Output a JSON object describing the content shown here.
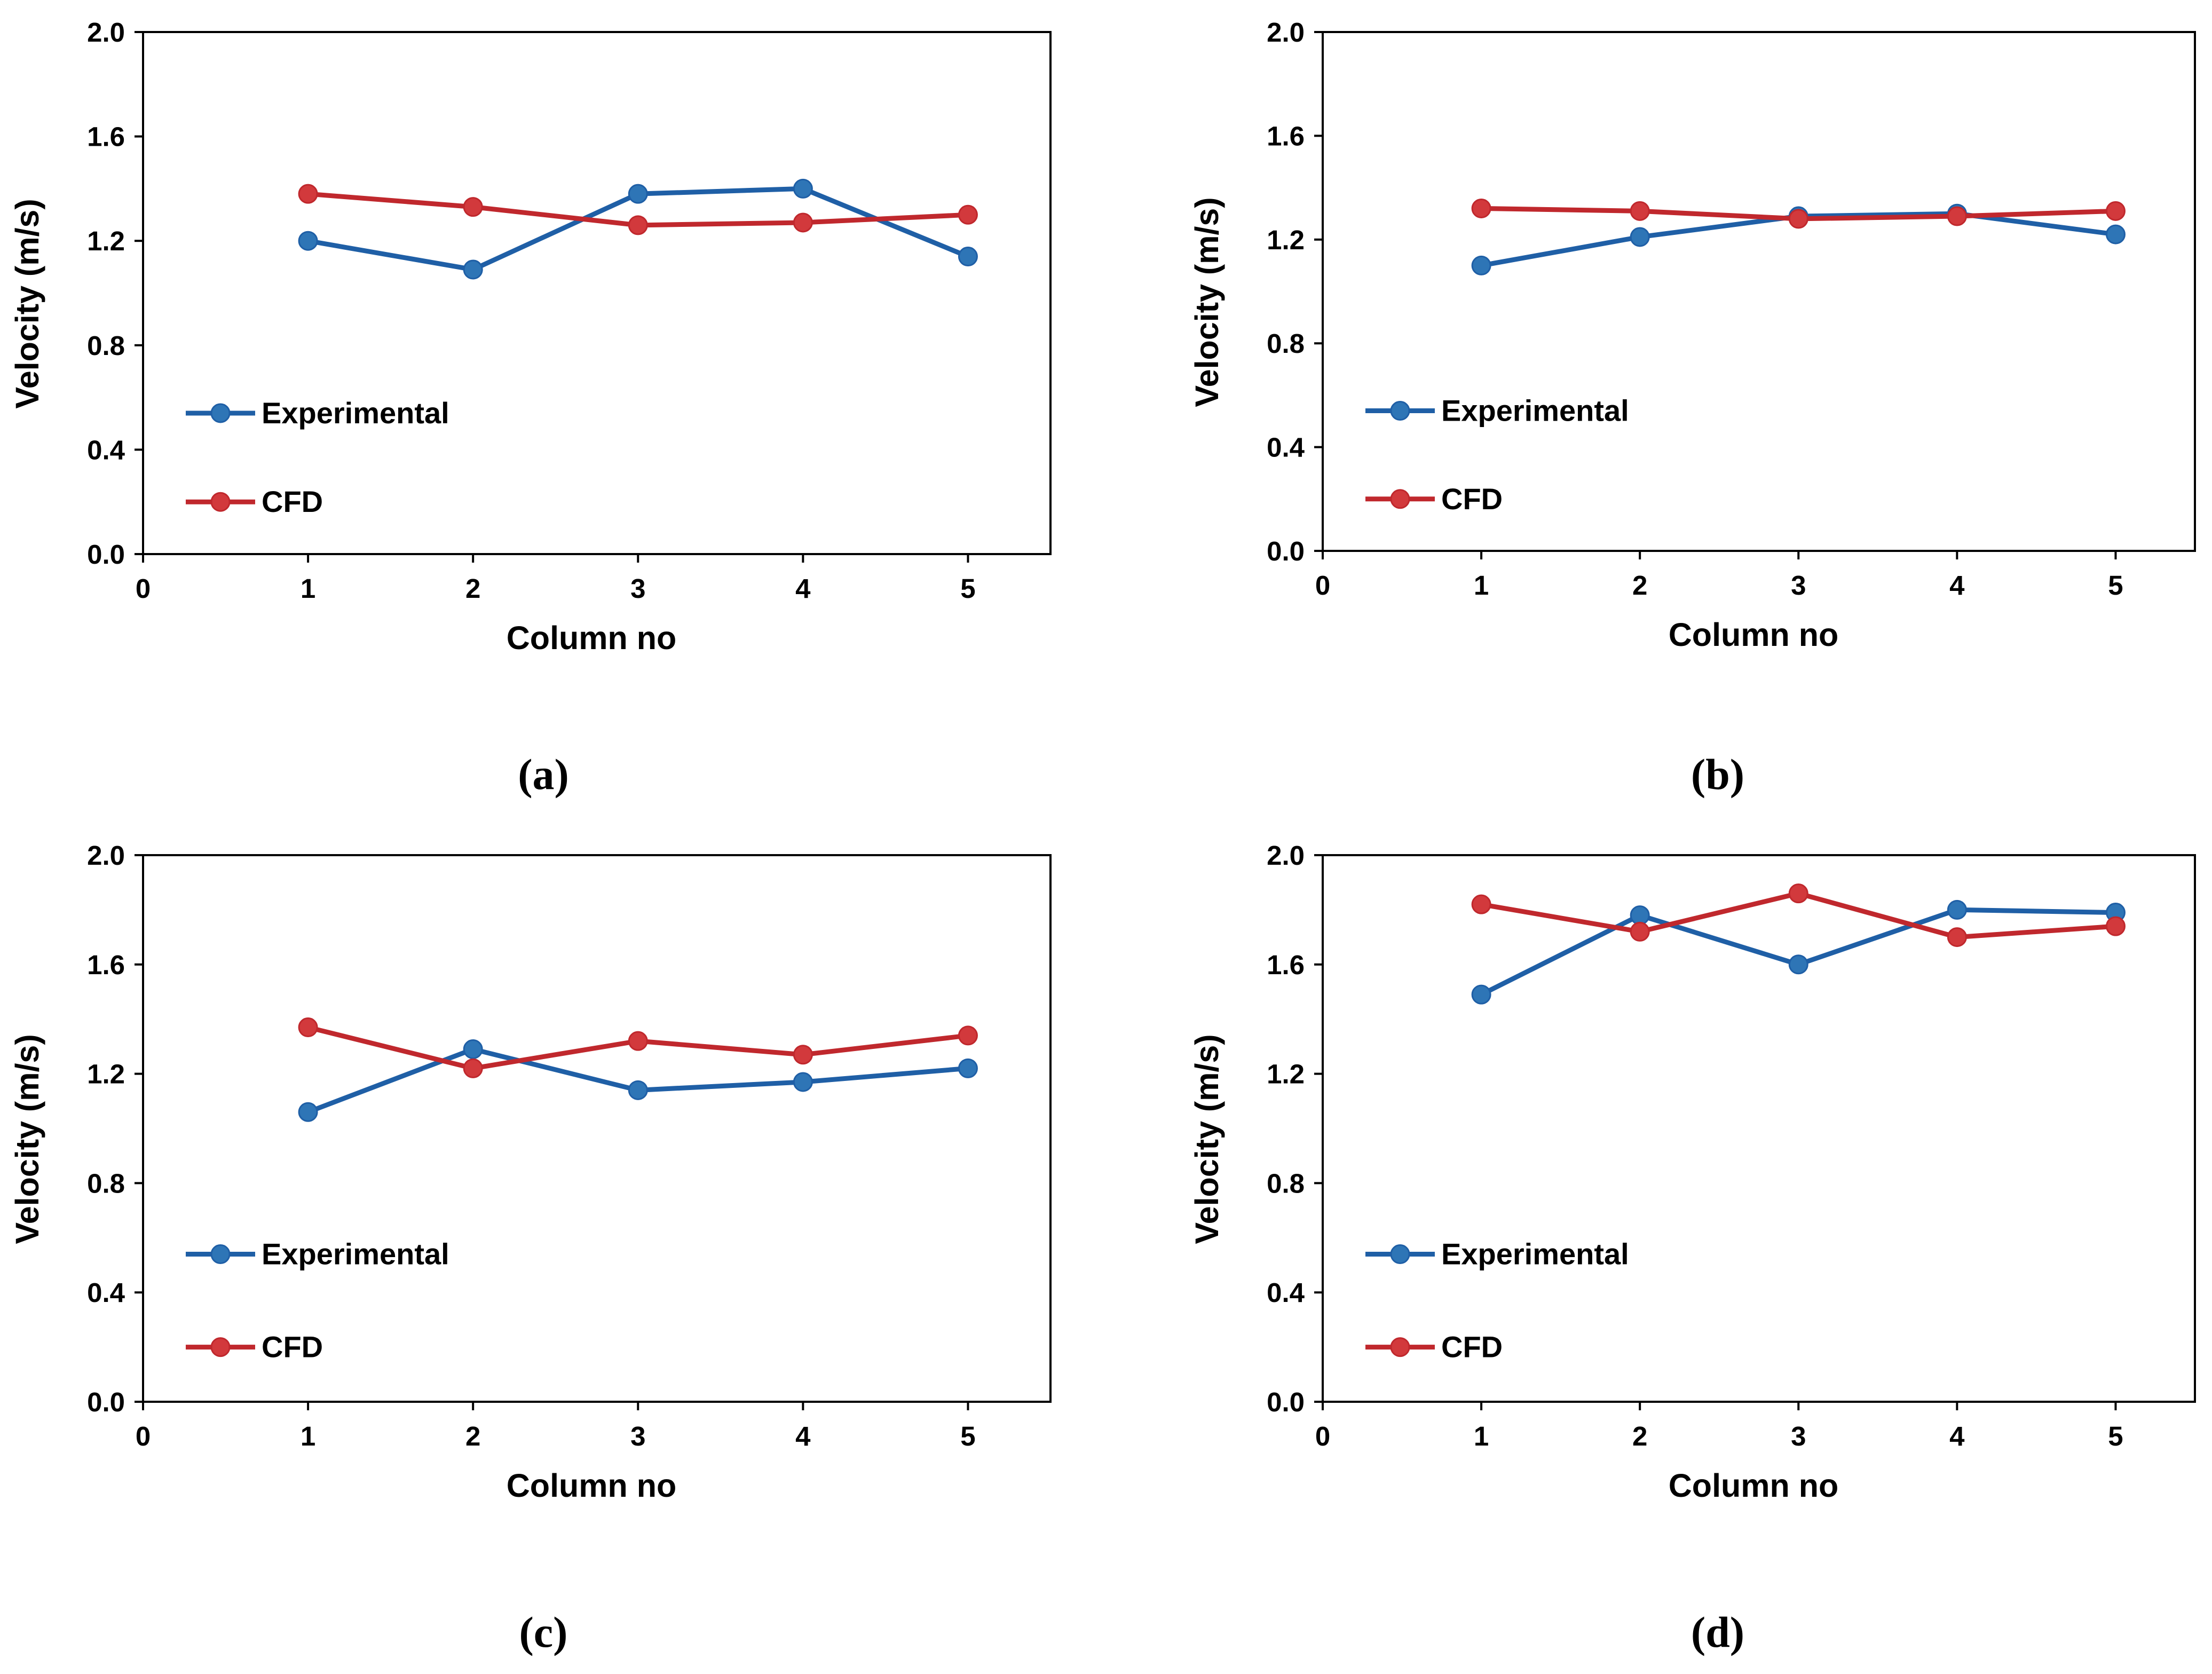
{
  "figure": {
    "series_colors": {
      "Experimental": "#1f5fa6",
      "CFD": "#c0282d"
    },
    "marker_colors": {
      "Experimental": "#2e75b6",
      "CFD": "#d2393c"
    }
  },
  "chart_data": [
    {
      "type": "line",
      "panel_label": "(a)",
      "xlabel": "Column no",
      "ylabel": "Velocity (m/s)",
      "xlim": [
        0,
        5.5
      ],
      "ylim": [
        0.0,
        2.0
      ],
      "x_ticks": [
        "0",
        "1",
        "2",
        "3",
        "4",
        "5"
      ],
      "y_ticks": [
        "0.0",
        "0.4",
        "0.8",
        "1.2",
        "1.6",
        "2.0"
      ],
      "legend": [
        "Experimental",
        "CFD"
      ],
      "x": [
        1,
        2,
        3,
        4,
        5
      ],
      "series": [
        {
          "name": "Experimental",
          "values": [
            1.2,
            1.09,
            1.38,
            1.4,
            1.14
          ]
        },
        {
          "name": "CFD",
          "values": [
            1.38,
            1.33,
            1.26,
            1.27,
            1.3
          ]
        }
      ]
    },
    {
      "type": "line",
      "panel_label": "(b)",
      "xlabel": "Column no",
      "ylabel": "Velocity (m/s)",
      "xlim": [
        0,
        5.5
      ],
      "ylim": [
        0.0,
        2.0
      ],
      "x_ticks": [
        "0",
        "1",
        "2",
        "3",
        "4",
        "5"
      ],
      "y_ticks": [
        "0.0",
        "0.4",
        "0.8",
        "1.2",
        "1.6",
        "2.0"
      ],
      "legend": [
        "Experimental",
        "CFD"
      ],
      "x": [
        1,
        2,
        3,
        4,
        5
      ],
      "series": [
        {
          "name": "Experimental",
          "values": [
            1.1,
            1.21,
            1.29,
            1.3,
            1.22
          ]
        },
        {
          "name": "CFD",
          "values": [
            1.32,
            1.31,
            1.28,
            1.29,
            1.31
          ]
        }
      ]
    },
    {
      "type": "line",
      "panel_label": "(c)",
      "xlabel": "Column no",
      "ylabel": "Velocity (m/s)",
      "xlim": [
        0,
        5.5
      ],
      "ylim": [
        0.0,
        2.0
      ],
      "x_ticks": [
        "0",
        "1",
        "2",
        "3",
        "4",
        "5"
      ],
      "y_ticks": [
        "0.0",
        "0.4",
        "0.8",
        "1.2",
        "1.6",
        "2.0"
      ],
      "legend": [
        "Experimental",
        "CFD"
      ],
      "x": [
        1,
        2,
        3,
        4,
        5
      ],
      "series": [
        {
          "name": "Experimental",
          "values": [
            1.06,
            1.29,
            1.14,
            1.17,
            1.22
          ]
        },
        {
          "name": "CFD",
          "values": [
            1.37,
            1.22,
            1.32,
            1.27,
            1.34
          ]
        }
      ]
    },
    {
      "type": "line",
      "panel_label": "(d)",
      "xlabel": "Column no",
      "ylabel": "Velocity (m/s)",
      "xlim": [
        0,
        5.5
      ],
      "ylim": [
        0.0,
        2.0
      ],
      "x_ticks": [
        "0",
        "1",
        "2",
        "3",
        "4",
        "5"
      ],
      "y_ticks": [
        "0.0",
        "0.4",
        "0.8",
        "1.2",
        "1.6",
        "2.0"
      ],
      "legend": [
        "Experimental",
        "CFD"
      ],
      "x": [
        1,
        2,
        3,
        4,
        5
      ],
      "series": [
        {
          "name": "Experimental",
          "values": [
            1.49,
            1.78,
            1.6,
            1.8,
            1.79
          ]
        },
        {
          "name": "CFD",
          "values": [
            1.82,
            1.72,
            1.86,
            1.7,
            1.74
          ]
        }
      ]
    }
  ]
}
